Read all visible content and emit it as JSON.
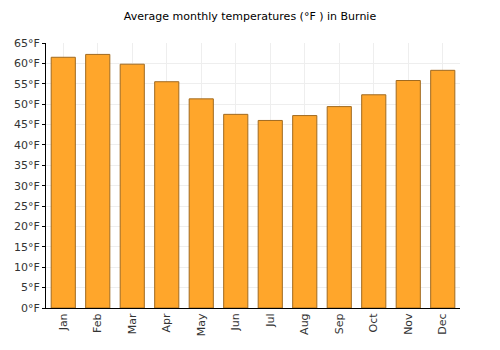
{
  "chart_data": {
    "type": "bar",
    "title": "Average monthly temperatures (°F ) in Burnie",
    "categories": [
      "Jan",
      "Feb",
      "Mar",
      "Apr",
      "May",
      "Jun",
      "Jul",
      "Aug",
      "Sep",
      "Oct",
      "Nov",
      "Dec"
    ],
    "values": [
      61.5,
      62.2,
      59.8,
      55.5,
      51.3,
      47.5,
      46.0,
      47.2,
      49.4,
      52.3,
      55.8,
      58.3
    ],
    "color": "#ffa62b",
    "ylim": [
      0,
      65
    ],
    "yticks": [
      {
        "value": 0,
        "label": "0°F"
      },
      {
        "value": 5,
        "label": "5°F"
      },
      {
        "value": 10,
        "label": "10°F"
      },
      {
        "value": 15,
        "label": "15°F"
      },
      {
        "value": 20,
        "label": "20°F"
      },
      {
        "value": 25,
        "label": "25°F"
      },
      {
        "value": 30,
        "label": "30°F"
      },
      {
        "value": 35,
        "label": "35°F"
      },
      {
        "value": 40,
        "label": "40°F"
      },
      {
        "value": 45,
        "label": "45°F"
      },
      {
        "value": 50,
        "label": "50°F"
      },
      {
        "value": 55,
        "label": "55°F"
      },
      {
        "value": 60,
        "label": "60°F"
      },
      {
        "value": 65,
        "label": "65°F"
      }
    ],
    "grid": true
  }
}
